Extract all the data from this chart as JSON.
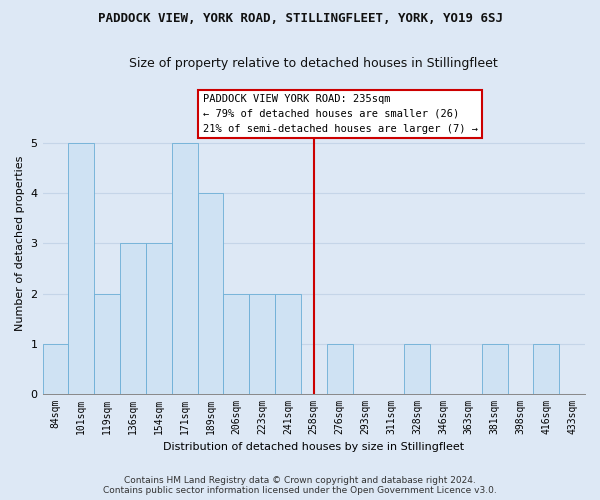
{
  "title": "PADDOCK VIEW, YORK ROAD, STILLINGFLEET, YORK, YO19 6SJ",
  "subtitle": "Size of property relative to detached houses in Stillingfleet",
  "xlabel": "Distribution of detached houses by size in Stillingfleet",
  "ylabel": "Number of detached properties",
  "categories": [
    "84sqm",
    "101sqm",
    "119sqm",
    "136sqm",
    "154sqm",
    "171sqm",
    "189sqm",
    "206sqm",
    "223sqm",
    "241sqm",
    "258sqm",
    "276sqm",
    "293sqm",
    "311sqm",
    "328sqm",
    "346sqm",
    "363sqm",
    "381sqm",
    "398sqm",
    "416sqm",
    "433sqm"
  ],
  "values": [
    1,
    5,
    2,
    3,
    3,
    5,
    4,
    2,
    2,
    2,
    0,
    1,
    0,
    0,
    1,
    0,
    0,
    1,
    0,
    1,
    0
  ],
  "bar_color": "#cfe2f3",
  "bar_edge_color": "#6baed6",
  "highlight_index": 10,
  "highlight_line_color": "#cc0000",
  "annotation_text": "PADDOCK VIEW YORK ROAD: 235sqm\n← 79% of detached houses are smaller (26)\n21% of semi-detached houses are larger (7) →",
  "annotation_box_facecolor": "#ffffff",
  "annotation_box_edgecolor": "#cc0000",
  "ylim": [
    0,
    6
  ],
  "yticks": [
    0,
    1,
    2,
    3,
    4,
    5,
    6
  ],
  "plot_bg_color": "#dde8f5",
  "fig_bg_color": "#dde8f5",
  "grid_color": "#c5d5e8",
  "footer_line1": "Contains HM Land Registry data © Crown copyright and database right 2024.",
  "footer_line2": "Contains public sector information licensed under the Open Government Licence v3.0.",
  "title_fontsize": 9,
  "subtitle_fontsize": 9,
  "axis_label_fontsize": 8,
  "tick_fontsize": 7,
  "ann_fontsize": 7.5,
  "footer_fontsize": 6.5
}
